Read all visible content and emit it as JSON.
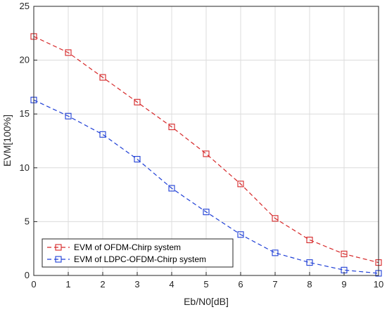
{
  "chart_data": {
    "type": "line",
    "xlabel": "Eb/N0[dB]",
    "ylabel": "EVM[100%]",
    "xlim": [
      0,
      10
    ],
    "ylim": [
      0,
      25
    ],
    "xticks": [
      "0",
      "1",
      "2",
      "3",
      "4",
      "5",
      "6",
      "7",
      "8",
      "9",
      "10"
    ],
    "yticks": [
      "0",
      "5",
      "10",
      "15",
      "20",
      "25"
    ],
    "grid": true,
    "legend_position": "bottom-left",
    "x": [
      0,
      1,
      2,
      3,
      4,
      5,
      6,
      7,
      8,
      9,
      10
    ],
    "series": [
      {
        "name": "EVM of OFDM-Chirp system",
        "color": "#d62728",
        "marker": "square",
        "line_style": "dashed",
        "values": [
          22.2,
          20.7,
          18.4,
          16.1,
          13.8,
          11.3,
          8.5,
          5.3,
          3.3,
          2.0,
          1.2
        ]
      },
      {
        "name": "EVM of LDPC-OFDM-Chirp system",
        "color": "#1f3fd6",
        "marker": "square",
        "line_style": "dashed",
        "values": [
          16.3,
          14.8,
          13.1,
          10.8,
          8.1,
          5.9,
          3.8,
          2.1,
          1.2,
          0.5,
          0.2
        ]
      }
    ]
  }
}
